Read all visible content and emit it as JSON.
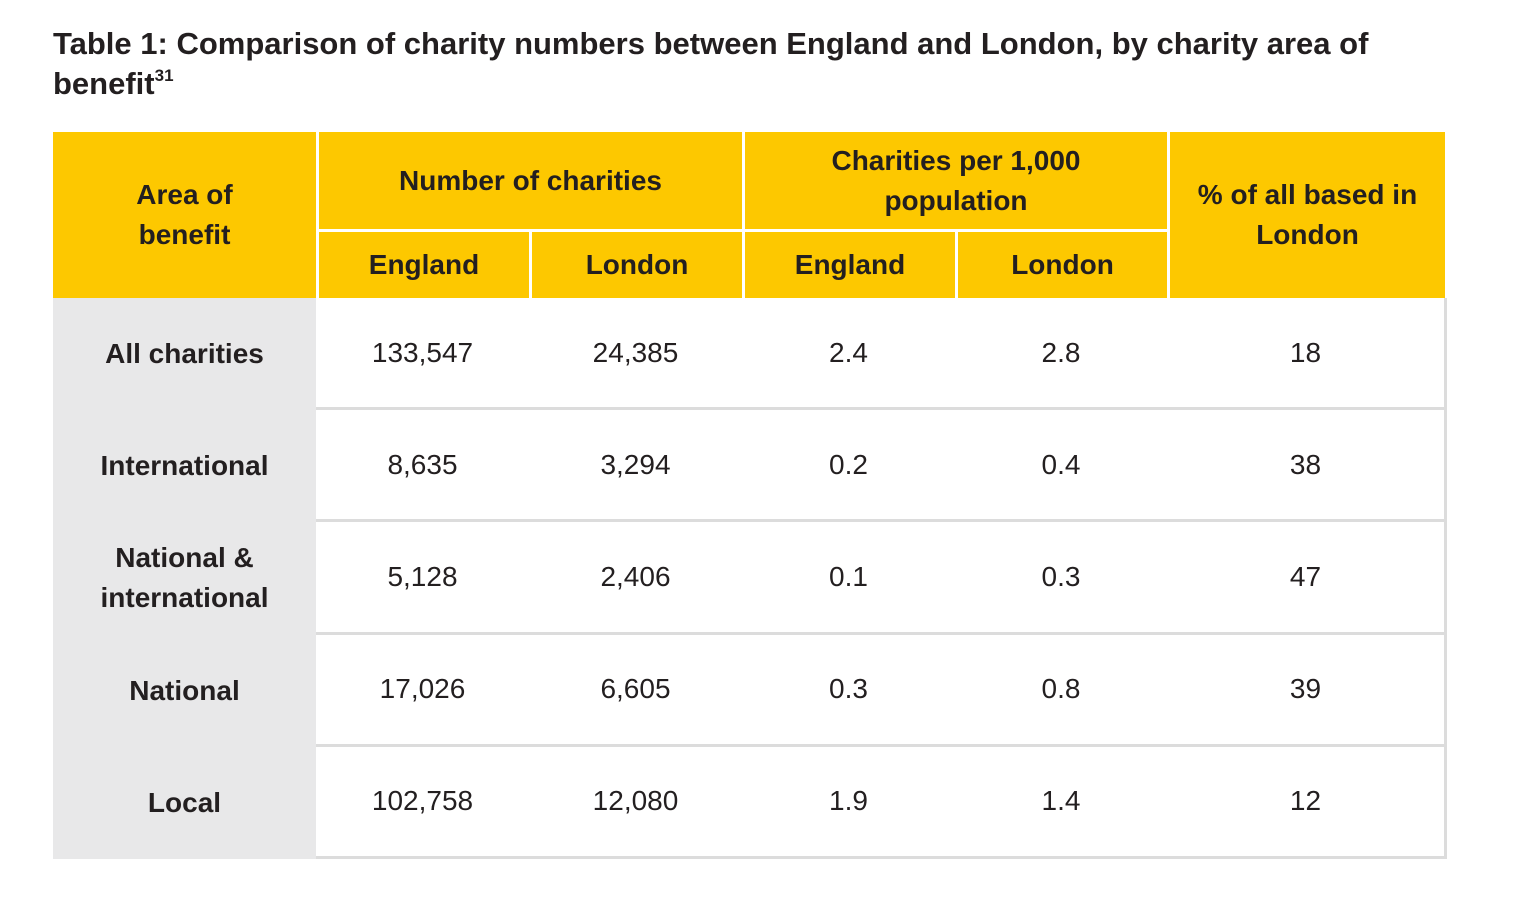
{
  "title": "Table 1: Comparison of charity numbers between England and London, by charity area of benefit",
  "footnote": "31",
  "table": {
    "headers": {
      "area": "Area of benefit",
      "number": "Number of charities",
      "per_population": "Charities per 1,000 population",
      "percent_london": "% of all based in London",
      "sub": [
        "England",
        "London",
        "England",
        "London"
      ]
    },
    "rows": [
      [
        "All charities",
        "133,547",
        "24,385",
        "2.4",
        "2.8",
        "18"
      ],
      [
        "International",
        "8,635",
        "3,294",
        "0.2",
        "0.4",
        "38"
      ],
      [
        "National & international",
        "5,128",
        "2,406",
        "0.1",
        "0.3",
        "47"
      ],
      [
        "National",
        "17,026",
        "6,605",
        "0.3",
        "0.8",
        "39"
      ],
      [
        "Local",
        "102,758",
        "12,080",
        "1.9",
        "1.4",
        "12"
      ]
    ]
  }
}
